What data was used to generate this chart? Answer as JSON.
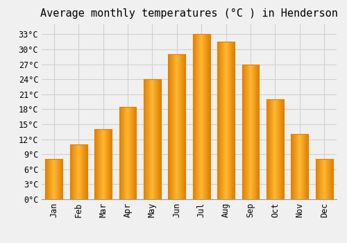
{
  "title": "Average monthly temperatures (°C ) in Henderson",
  "months": [
    "Jan",
    "Feb",
    "Mar",
    "Apr",
    "May",
    "Jun",
    "Jul",
    "Aug",
    "Sep",
    "Oct",
    "Nov",
    "Dec"
  ],
  "values": [
    8.0,
    11.0,
    14.0,
    18.5,
    24.0,
    29.0,
    33.0,
    31.5,
    27.0,
    20.0,
    13.0,
    8.0
  ],
  "bar_color_center": "#FFB733",
  "bar_color_edge": "#E08000",
  "background_color": "#f0f0f0",
  "grid_color": "#d0d0d0",
  "yticks": [
    0,
    3,
    6,
    9,
    12,
    15,
    18,
    21,
    24,
    27,
    30,
    33
  ],
  "ylim": [
    0,
    35
  ],
  "title_fontsize": 11,
  "tick_fontsize": 8.5,
  "font_family": "monospace"
}
